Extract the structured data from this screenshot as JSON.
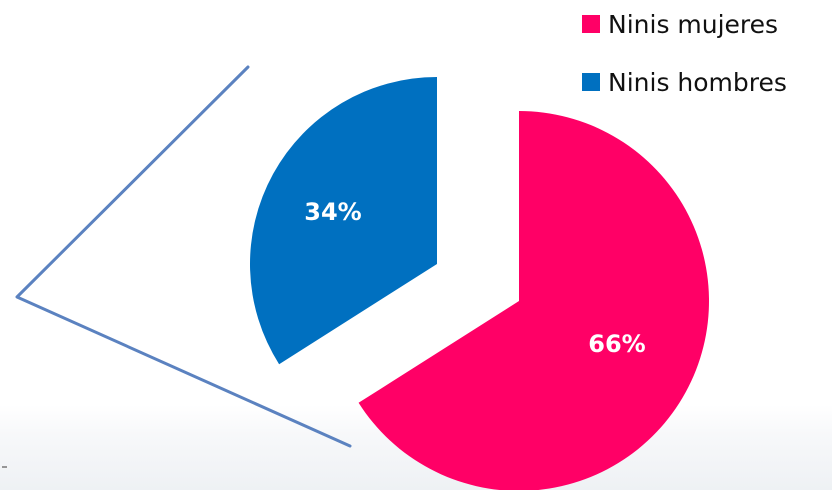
{
  "chart_data": {
    "type": "pie",
    "categories": [
      "Ninis mujeres",
      "Ninis hombres"
    ],
    "values": [
      66,
      34
    ],
    "data_labels": [
      "66%",
      "34%"
    ],
    "exploded": true,
    "legend_position": "top-right",
    "colors": [
      "#FF0066",
      "#0070C0"
    ]
  },
  "legend": {
    "items": [
      {
        "label": "Ninis mujeres",
        "color": "#FF0066"
      },
      {
        "label": "Ninis hombres",
        "color": "#0070C0"
      }
    ]
  },
  "decoration": {
    "line_color": "#5B82C0"
  }
}
